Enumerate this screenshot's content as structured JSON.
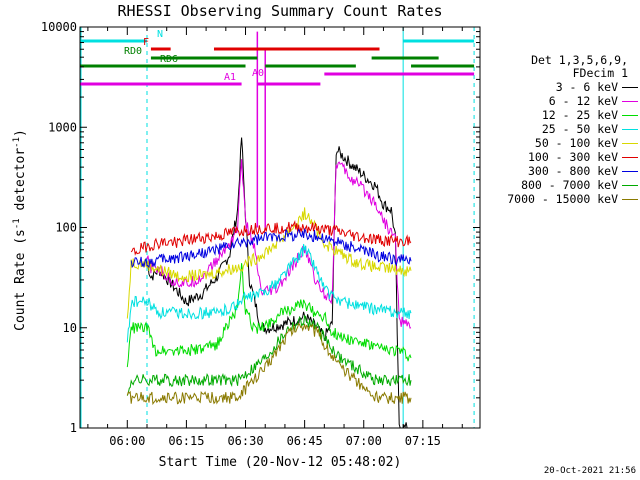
{
  "chart_data": {
    "type": "line",
    "title": "RHESSI Observing Summary Count Rates",
    "xlabel": "Start Time (20-Nov-12 05:48:02)",
    "ylabel_main": "Count Rate (s",
    "ylabel_sup1": "-1",
    "ylabel_mid": " detector",
    "ylabel_sup2": "-1",
    "ylabel_end": ")",
    "yscale": "log",
    "ylim": [
      1,
      10000
    ],
    "y_ticks": [
      "1",
      "10",
      "100",
      "1000",
      "10000"
    ],
    "x_ticks": [
      "06:00",
      "06:15",
      "06:30",
      "06:45",
      "07:00",
      "07:15"
    ],
    "x_tick_minutes": [
      12,
      27,
      42,
      57,
      72,
      87
    ],
    "xlim_minutes": [
      0,
      101.5
    ],
    "legend_header": [
      "Det 1,3,5,6,9,",
      "FDecim 1"
    ],
    "series": [
      {
        "name": "3 - 6 keV",
        "color": "#000000",
        "points": [
          [
            17,
            45
          ],
          [
            18,
            32
          ],
          [
            20,
            38
          ],
          [
            23,
            28
          ],
          [
            27,
            18
          ],
          [
            31,
            22
          ],
          [
            35,
            33
          ],
          [
            38,
            55
          ],
          [
            40,
            150
          ],
          [
            41,
            800
          ],
          [
            42,
            130
          ],
          [
            43,
            30
          ],
          [
            46,
            10
          ],
          [
            48,
            10
          ],
          [
            52,
            11
          ],
          [
            55,
            12
          ],
          [
            57,
            13
          ],
          [
            59,
            11
          ],
          [
            62,
            8
          ],
          [
            64,
            11
          ],
          [
            65,
            600
          ],
          [
            66,
            550
          ],
          [
            69,
            420
          ],
          [
            72,
            330
          ],
          [
            75,
            260
          ],
          [
            77,
            170
          ],
          [
            79,
            150
          ],
          [
            80,
            80
          ],
          [
            81,
            1
          ],
          [
            84,
            1
          ]
        ]
      },
      {
        "name": "6 - 12 keV",
        "color": "#e000e0",
        "points": [
          [
            17,
            48
          ],
          [
            18,
            40
          ],
          [
            20,
            38
          ],
          [
            23,
            30
          ],
          [
            27,
            27
          ],
          [
            31,
            32
          ],
          [
            35,
            48
          ],
          [
            38,
            70
          ],
          [
            40,
            100
          ],
          [
            41,
            500
          ],
          [
            42,
            110
          ],
          [
            44,
            70
          ],
          [
            46,
            22
          ],
          [
            50,
            24
          ],
          [
            54,
            40
          ],
          [
            56,
            55
          ],
          [
            57,
            60
          ],
          [
            58,
            50
          ],
          [
            60,
            28
          ],
          [
            62,
            22
          ],
          [
            64,
            20
          ],
          [
            65,
            450
          ],
          [
            66,
            420
          ],
          [
            69,
            300
          ],
          [
            72,
            240
          ],
          [
            75,
            175
          ],
          [
            78,
            100
          ],
          [
            80,
            80
          ],
          [
            81,
            12
          ],
          [
            84,
            10
          ]
        ]
      },
      {
        "name": "12 - 25 keV",
        "color": "#00dd00",
        "points": [
          [
            12,
            4
          ],
          [
            13,
            10
          ],
          [
            17,
            10
          ],
          [
            19,
            6
          ],
          [
            25,
            6
          ],
          [
            31,
            6
          ],
          [
            35,
            7
          ],
          [
            38,
            12
          ],
          [
            40,
            15
          ],
          [
            41,
            40
          ],
          [
            42,
            15
          ],
          [
            44,
            10
          ],
          [
            46,
            10
          ],
          [
            50,
            13
          ],
          [
            54,
            16
          ],
          [
            57,
            17
          ],
          [
            60,
            14
          ],
          [
            62,
            13
          ],
          [
            64,
            9
          ],
          [
            67,
            8
          ],
          [
            72,
            7
          ],
          [
            77,
            6
          ],
          [
            81,
            6
          ],
          [
            84,
            5
          ]
        ]
      },
      {
        "name": "25 - 50 keV",
        "color": "#00e0e0",
        "points": [
          [
            12,
            7
          ],
          [
            13,
            18
          ],
          [
            17,
            18
          ],
          [
            20,
            14
          ],
          [
            25,
            14
          ],
          [
            31,
            14
          ],
          [
            35,
            14
          ],
          [
            38,
            16
          ],
          [
            40,
            17
          ],
          [
            41,
            20
          ],
          [
            43,
            20
          ],
          [
            46,
            22
          ],
          [
            50,
            28
          ],
          [
            53,
            40
          ],
          [
            56,
            55
          ],
          [
            57,
            62
          ],
          [
            58,
            55
          ],
          [
            60,
            38
          ],
          [
            62,
            25
          ],
          [
            64,
            20
          ],
          [
            67,
            18
          ],
          [
            72,
            16
          ],
          [
            77,
            15
          ],
          [
            81,
            14
          ],
          [
            84,
            14
          ]
        ]
      },
      {
        "name": "50 - 100 keV",
        "color": "#d8d800",
        "points": [
          [
            12,
            12
          ],
          [
            13,
            45
          ],
          [
            17,
            43
          ],
          [
            20,
            38
          ],
          [
            25,
            33
          ],
          [
            31,
            33
          ],
          [
            35,
            36
          ],
          [
            40,
            40
          ],
          [
            45,
            50
          ],
          [
            50,
            70
          ],
          [
            55,
            110
          ],
          [
            57,
            140
          ],
          [
            59,
            110
          ],
          [
            62,
            70
          ],
          [
            66,
            55
          ],
          [
            70,
            45
          ],
          [
            75,
            40
          ],
          [
            80,
            38
          ],
          [
            84,
            37
          ]
        ]
      },
      {
        "name": "100 - 300 keV",
        "color": "#e00000",
        "points": [
          [
            13,
            55
          ],
          [
            17,
            65
          ],
          [
            20,
            70
          ],
          [
            25,
            72
          ],
          [
            30,
            78
          ],
          [
            35,
            82
          ],
          [
            40,
            92
          ],
          [
            45,
            98
          ],
          [
            50,
            100
          ],
          [
            55,
            100
          ],
          [
            57,
            100
          ],
          [
            60,
            98
          ],
          [
            65,
            92
          ],
          [
            70,
            82
          ],
          [
            75,
            76
          ],
          [
            80,
            73
          ],
          [
            84,
            72
          ]
        ]
      },
      {
        "name": "300 - 800 keV",
        "color": "#0000e0",
        "points": [
          [
            13,
            45
          ],
          [
            17,
            45
          ],
          [
            20,
            47
          ],
          [
            25,
            50
          ],
          [
            30,
            55
          ],
          [
            35,
            60
          ],
          [
            40,
            68
          ],
          [
            45,
            75
          ],
          [
            50,
            82
          ],
          [
            55,
            85
          ],
          [
            57,
            86
          ],
          [
            60,
            82
          ],
          [
            65,
            72
          ],
          [
            70,
            62
          ],
          [
            75,
            53
          ],
          [
            80,
            48
          ],
          [
            84,
            46
          ]
        ]
      },
      {
        "name": "800 - 7000 keV",
        "color": "#00aa00",
        "points": [
          [
            12,
            2
          ],
          [
            13,
            3
          ],
          [
            17,
            3
          ],
          [
            20,
            3
          ],
          [
            25,
            3
          ],
          [
            30,
            3
          ],
          [
            35,
            3
          ],
          [
            40,
            3
          ],
          [
            44,
            4
          ],
          [
            47,
            5
          ],
          [
            50,
            7
          ],
          [
            53,
            10
          ],
          [
            55,
            11
          ],
          [
            57,
            12
          ],
          [
            60,
            10
          ],
          [
            63,
            7
          ],
          [
            66,
            5
          ],
          [
            70,
            4
          ],
          [
            75,
            3
          ],
          [
            80,
            3
          ],
          [
            84,
            3
          ]
        ]
      },
      {
        "name": "7000 - 15000 keV",
        "color": "#8a7a00",
        "points": [
          [
            12,
            2
          ],
          [
            13,
            2
          ],
          [
            17,
            2
          ],
          [
            20,
            2
          ],
          [
            25,
            2
          ],
          [
            30,
            2
          ],
          [
            35,
            2
          ],
          [
            40,
            2
          ],
          [
            44,
            3
          ],
          [
            47,
            4
          ],
          [
            50,
            6
          ],
          [
            53,
            9
          ],
          [
            55,
            10
          ],
          [
            57,
            11
          ],
          [
            60,
            9
          ],
          [
            63,
            6
          ],
          [
            66,
            4
          ],
          [
            70,
            3
          ],
          [
            75,
            2
          ],
          [
            80,
            2
          ],
          [
            84,
            2
          ]
        ]
      }
    ],
    "status_bars": [
      {
        "label": "N",
        "color": "#00e0e0",
        "segments": [
          [
            0,
            17
          ],
          [
            82,
            100
          ]
        ]
      },
      {
        "label": "F",
        "color": "#e00000",
        "segments": [
          [
            18,
            23
          ],
          [
            34,
            76
          ]
        ]
      },
      {
        "label": "RD0",
        "color": "#008000",
        "segments": [
          [
            18,
            45
          ],
          [
            74,
            91
          ]
        ]
      },
      {
        "label": "RD6",
        "color": "#008000",
        "segments": [
          [
            0,
            42
          ],
          [
            47,
            70
          ],
          [
            84,
            100
          ]
        ]
      },
      {
        "label": "A0",
        "color": "#e000e0",
        "segments": [
          [
            62,
            100
          ]
        ]
      },
      {
        "label": "A1",
        "color": "#e000e0",
        "segments": [
          [
            0,
            41
          ],
          [
            45,
            61
          ]
        ]
      }
    ],
    "vertical_markers": [
      {
        "x_minutes": 17,
        "color": "#00e0e0",
        "style": "dashed"
      },
      {
        "x_minutes": 82,
        "color": "#00e0e0",
        "style": "solid"
      },
      {
        "x_minutes": 100,
        "color": "#00e0e0",
        "style": "dashed"
      }
    ],
    "attenuator_spikes": [
      {
        "x_minutes": 45,
        "top": 9000,
        "color": "#e000e0"
      },
      {
        "x_minutes": 47,
        "top": 6000,
        "color": "#e000e0"
      }
    ]
  },
  "footer": "20-Oct-2021 21:56"
}
